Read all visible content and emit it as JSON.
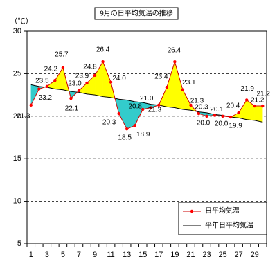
{
  "chart_data": {
    "type": "line",
    "title": "9月の日平均気温の推移",
    "ylabel": "（℃）",
    "ylim": [
      5,
      30
    ],
    "y_ticks": [
      5,
      10,
      15,
      20,
      25,
      30
    ],
    "x": [
      1,
      2,
      3,
      4,
      5,
      6,
      7,
      8,
      9,
      10,
      11,
      12,
      13,
      14,
      15,
      16,
      17,
      18,
      19,
      20,
      21,
      22,
      23,
      24,
      25,
      26,
      27,
      28,
      29,
      30
    ],
    "x_ticks": [
      1,
      3,
      5,
      7,
      9,
      11,
      13,
      15,
      17,
      19,
      21,
      23,
      25,
      27,
      29
    ],
    "grid": true,
    "legend_position": "bottom-right",
    "series": [
      {
        "name": "日平均気温",
        "values": [
          21.3,
          23.2,
          23.5,
          24.2,
          25.7,
          22.1,
          23.0,
          23.9,
          24.8,
          26.4,
          24.0,
          20.3,
          18.5,
          18.9,
          20.8,
          21.0,
          21.3,
          23.4,
          26.4,
          23.1,
          21.3,
          20.3,
          20.0,
          20.1,
          20.0,
          19.9,
          20.4,
          21.9,
          21.2,
          21.2
        ],
        "data_labels": [
          "21.3",
          "23.2",
          "23.5",
          "24.2",
          "25.7",
          "22.1",
          "23.0",
          "23.9",
          "24.8",
          "26.4",
          "24.0",
          "20.3",
          "18.5",
          "18.9",
          "20.8",
          "21.0",
          "21.3",
          "23.4",
          "26.4",
          "23.1",
          "21.3",
          "20.3",
          "20.0",
          "20.1",
          "20.0",
          "19.9",
          "20.4",
          "21.9",
          "21.2",
          "21.2"
        ],
        "color": "#cc0000",
        "marker_color": "#ff0000"
      },
      {
        "name": "平年日平均気温",
        "values": [
          23.7,
          23.5,
          23.4,
          23.2,
          23.1,
          22.9,
          22.8,
          22.6,
          22.5,
          22.3,
          22.2,
          22.0,
          21.9,
          21.7,
          21.6,
          21.4,
          21.3,
          21.1,
          21.0,
          20.8,
          20.7,
          20.5,
          20.4,
          20.2,
          20.1,
          19.9,
          19.8,
          19.6,
          19.5,
          19.3
        ],
        "color": "#000000"
      }
    ],
    "fill_colors": {
      "above_normal": "#ffff00",
      "below_normal": "#33cccc"
    }
  }
}
